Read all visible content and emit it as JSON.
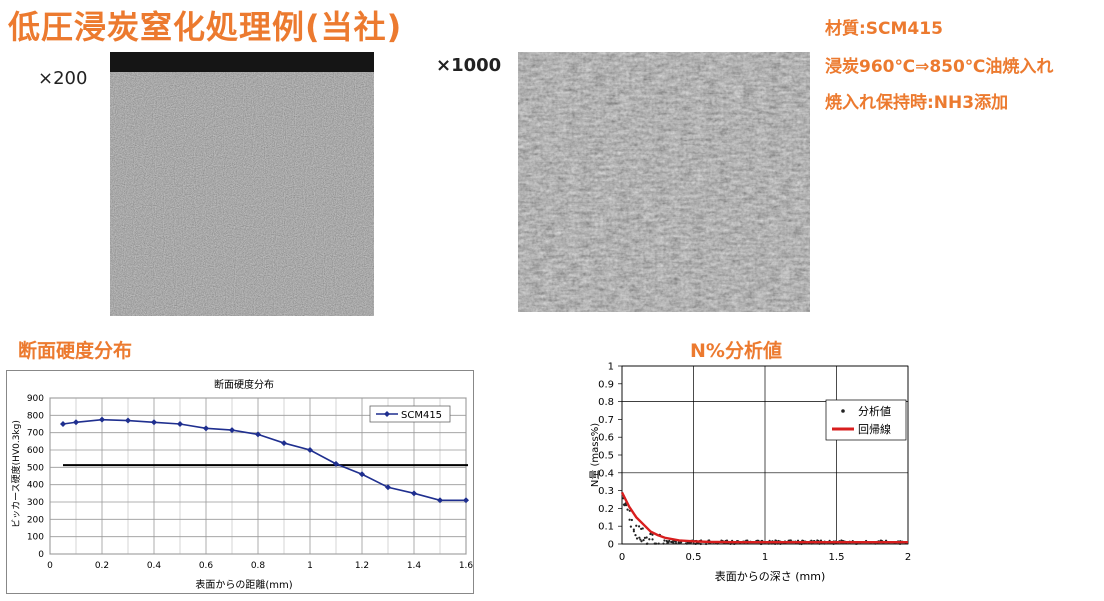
{
  "title": "低圧浸炭窒化処理例(当社)",
  "specs": [
    "材質:SCM415",
    "浸炭960℃⇒850℃油焼入れ",
    "焼入れ保持時:NH3添加"
  ],
  "micro": {
    "mag_low": "×200",
    "mag_high": "×1000"
  },
  "hardness_section_title": "断面硬度分布",
  "nitrogen_section_title": "N%分析値",
  "colors": {
    "accent": "#ec7a2f",
    "series": "#1f2f8f",
    "regression": "#d81e1e"
  },
  "chart_data": [
    {
      "type": "line",
      "title": "断面硬度分布",
      "xlabel": "表面からの距離(mm)",
      "ylabel": "ビッカース硬度(HV0.3kg)",
      "xlim": [
        0,
        1.6
      ],
      "ylim": [
        0,
        900
      ],
      "xticks": [
        "0",
        "0.2",
        "0.4",
        "0.6",
        "0.8",
        "1",
        "1.2",
        "1.4",
        "1.6"
      ],
      "yticks": [
        "0",
        "100",
        "200",
        "300",
        "400",
        "500",
        "600",
        "700",
        "800",
        "900"
      ],
      "grid": true,
      "legend_position": "top-right",
      "reference_line": 513,
      "series": [
        {
          "name": "SCM415",
          "x": [
            0.05,
            0.1,
            0.2,
            0.3,
            0.4,
            0.5,
            0.6,
            0.7,
            0.8,
            0.9,
            1.0,
            1.1,
            1.2,
            1.3,
            1.4,
            1.5,
            1.6
          ],
          "y": [
            750,
            760,
            775,
            770,
            760,
            750,
            725,
            715,
            690,
            640,
            600,
            520,
            460,
            385,
            350,
            310,
            310
          ]
        }
      ]
    },
    {
      "type": "scatter",
      "title": "N%分析値",
      "xlabel": "表面からの深さ (mm)",
      "ylabel": "N量 (mass%)",
      "xlim": [
        0,
        2
      ],
      "ylim": [
        0,
        1
      ],
      "xticks": [
        "0",
        "0.5",
        "1",
        "1.5",
        "2"
      ],
      "yticks": [
        "0",
        "0.1",
        "0.2",
        "0.3",
        "0.4",
        "0.5",
        "0.6",
        "0.7",
        "0.8",
        "0.9",
        "1"
      ],
      "grid": true,
      "legend_position": "top-right",
      "series": [
        {
          "name": "分析値",
          "kind": "points",
          "a": 0.3,
          "k": 15,
          "floor": 0.01,
          "x_range": [
            0,
            2
          ]
        },
        {
          "name": "回帰線",
          "kind": "line",
          "x": [
            0,
            0.05,
            0.1,
            0.15,
            0.2,
            0.25,
            0.3,
            0.4,
            0.5,
            0.6,
            0.8,
            1.0,
            1.5,
            2.0
          ],
          "y": [
            0.29,
            0.21,
            0.15,
            0.11,
            0.07,
            0.05,
            0.035,
            0.02,
            0.015,
            0.012,
            0.01,
            0.01,
            0.01,
            0.01
          ]
        }
      ]
    }
  ]
}
